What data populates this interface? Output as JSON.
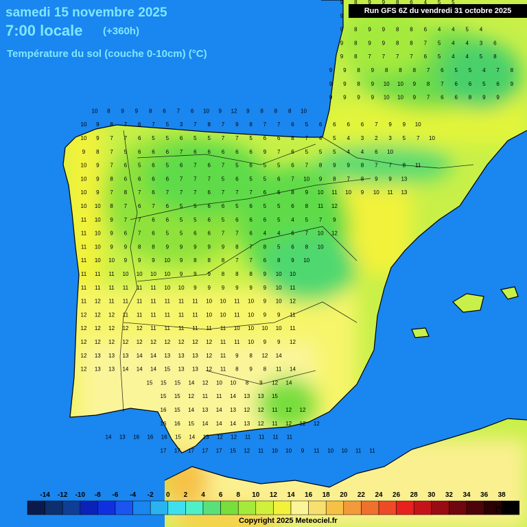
{
  "header": {
    "date": "samedi 15 novembre 2025",
    "time": "7:00 locale",
    "lead_time": "(+360h)",
    "variable": "Température du sol (couche 0-10cm) (°C)",
    "run": "Run GFS 6Z du vendredi 31 octobre 2025"
  },
  "legend": {
    "unit": "(°C)",
    "ticks": [
      "-14",
      "-12",
      "-10",
      "-8",
      "-6",
      "-4",
      "-2",
      "0",
      "2",
      "4",
      "6",
      "8",
      "10",
      "12",
      "14",
      "16",
      "18",
      "20",
      "22",
      "24",
      "26",
      "28",
      "30",
      "32",
      "34",
      "36",
      "38"
    ],
    "colors": [
      "#0a1a4a",
      "#0d2f6e",
      "#103e95",
      "#0a22b8",
      "#1030e0",
      "#1a55f0",
      "#1a86f0",
      "#29b4f0",
      "#3ee0f0",
      "#4ef0c8",
      "#5ae07a",
      "#78de3c",
      "#a4ea3c",
      "#d0f03c",
      "#f2f23a",
      "#fbf59a",
      "#f7e070",
      "#f6c246",
      "#f39a3a",
      "#f0702e",
      "#ee4a28",
      "#e8201e",
      "#c4141a",
      "#9a0c14",
      "#70060e",
      "#4a040a",
      "#2a0204",
      "#000000"
    ]
  },
  "grid_rows": [
    "9 8 9 9 8 6 4 5 5",
    "9 8 8 9 9 7 7 4 5 5 5",
    "9 8 9 9 8 8 6 4 4 5 4",
    "9 8 9 9 8 8 7 5 4 4 3 6",
    "9 8 7 7 7 7 6 5 4 4 5 8",
    "9 9 8 9 8 8 8 7 6 5 5 4 7 8",
    "9 9 8 9 10 10 9 8 7 6 6 5 6 9",
    "9 9 9 9 10 10 9 7 6 6 8 9 9",
    "10 8 9 9 8 6 7 6 10 9 12 9 8 8 8 10",
    "10 9 8 7 6 7 5 3 7 8 7 9 8 7 7 6 5 6 6 6 6 7 9 9 10",
    "10 9 7 7 6 5 5 6 5 5 7 7 5 6 6 8 7 4 5 4 3 2 3 5 7 10",
    "9 8 7 5 6 6 6 7 6 6 6 6 6 9 7 6 5 5 5 4 4 6 10",
    "10 9 7 6 5 6 5 6 7 6 7 5 6 5 5 6 7 8 9 9 8 7 7 8 11",
    "10 9 8 6 6 6 6 7 7 7 5 6 5 5 6 7 10 9 8 7 8 9 9 13",
    "10 9 7 8 7 6 7 7 7 6 7 7 7 6 6 8 9 10 11 10 9 10 11 13",
    "10 10 8 7 6 7 6 5 5 6 6 5 6 5 5 6 8 11 12",
    "11 10 9 7 7 6 6 5 5 6 5 6 6 6 5 4 5 7 9",
    "11 10 9 6 7 6 5 5 6 6 7 7 6 4 4 6 7 10 12",
    "11 10 9 9 8 8 9 9 9 9 9 8 7 8 5 6 8 10",
    "11 10 10 9 9 9 10 9 8 8 8 7 7 6 8 9 10",
    "11 11 11 10 10 10 10 9 9 9 8 8 8 9 10 10",
    "11 11 11 11 11 11 10 10 9 9 9 9 9 9 10 11",
    "11 12 11 11 11 11 11 11 11 10 10 11 10 9 10 12",
    "12 12 12 11 11 11 11 11 11 10 10 11 10 9 9 11",
    "12 12 12 12 12 11 11 11 11 11 11 10 10 10 10 11",
    "12 12 12 12 12 12 12 12 12 12 11 11 10 9 9 12",
    "12 13 13 13 14 14 13 13 13 12 11 9 8 12 14",
    "12 13 13 14 14 14 15 13 13 12 11 8 9 8 11 14",
    "15 15 15 14 12 10 10 8 9 12 14",
    "15 15 12 11 11 14 13 13 15",
    "16 15 14 13 14 13 12 12 11 12 12",
    "16 16 15 14 14 14 13 12 11 12 12 12",
    "14 13 16 16 16 15 14 13 12 12 11 11 11 11",
    "17 17 17 17 17 15 12 11 10 10 9 11 10 10 11 11"
  ],
  "footer": {
    "copyright": "Copyright 2025 Meteociel.fr"
  }
}
